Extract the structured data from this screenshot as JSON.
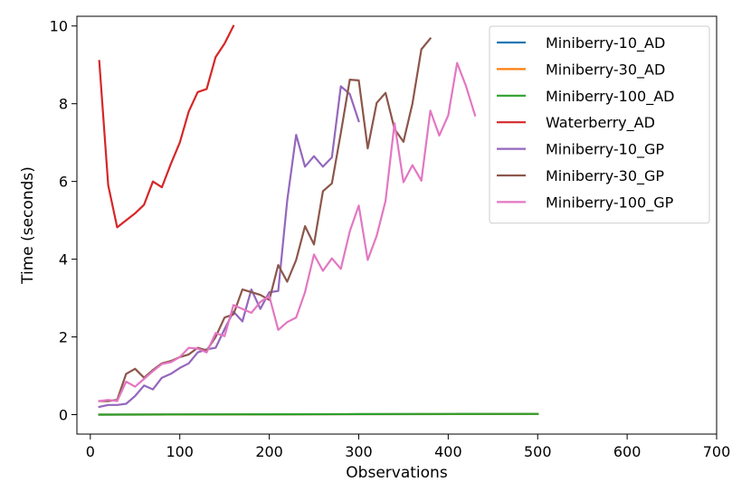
{
  "chart_data": {
    "type": "line",
    "title": "",
    "xlabel": "Observations",
    "ylabel": "Time (seconds)",
    "xlim": [
      -15,
      700
    ],
    "ylim": [
      -0.5,
      10.25
    ],
    "xticks": [
      "0",
      "100",
      "200",
      "300",
      "400",
      "500",
      "600",
      "700"
    ],
    "yticks": [
      "0",
      "2",
      "4",
      "6",
      "8",
      "10"
    ],
    "grid": false,
    "legend_position": "top-right",
    "series": [
      {
        "name": "Miniberry-10_AD",
        "color": "#1f77b4",
        "x": [
          10,
          500
        ],
        "y": [
          0.0,
          0.02
        ]
      },
      {
        "name": "Miniberry-30_AD",
        "color": "#ff7f0e",
        "x": [
          10,
          500
        ],
        "y": [
          0.0,
          0.02
        ]
      },
      {
        "name": "Miniberry-100_AD",
        "color": "#2ca02c",
        "x": [
          10,
          100,
          200,
          300,
          400,
          500
        ],
        "y": [
          0.0,
          0.005,
          0.01,
          0.014,
          0.017,
          0.02
        ]
      },
      {
        "name": "Waterberry_AD",
        "color": "#d62728",
        "x": [
          10,
          20,
          30,
          40,
          50,
          60,
          70,
          80,
          90,
          100,
          110,
          120,
          130,
          140,
          150,
          160
        ],
        "y": [
          9.1,
          5.9,
          4.82,
          5.0,
          5.18,
          5.4,
          6.0,
          5.85,
          6.45,
          7.0,
          7.8,
          8.3,
          8.38,
          9.2,
          9.55,
          10.0
        ]
      },
      {
        "name": "Miniberry-10_GP",
        "color": "#9467bd",
        "x": [
          10,
          20,
          30,
          40,
          50,
          60,
          70,
          80,
          90,
          100,
          110,
          120,
          130,
          140,
          150,
          160,
          170,
          180,
          190,
          200,
          210,
          220,
          230,
          240,
          250,
          260,
          270,
          280,
          290,
          300
        ],
        "y": [
          0.2,
          0.25,
          0.25,
          0.28,
          0.48,
          0.75,
          0.65,
          0.95,
          1.05,
          1.2,
          1.32,
          1.6,
          1.68,
          1.72,
          2.2,
          2.65,
          2.4,
          3.22,
          2.72,
          3.15,
          3.18,
          5.5,
          7.2,
          6.38,
          6.65,
          6.38,
          6.62,
          8.45,
          8.25,
          7.55
        ]
      },
      {
        "name": "Miniberry-30_GP",
        "color": "#8c564b",
        "x": [
          10,
          20,
          30,
          40,
          50,
          60,
          70,
          80,
          90,
          100,
          110,
          120,
          130,
          140,
          150,
          160,
          170,
          180,
          190,
          200,
          210,
          220,
          230,
          240,
          250,
          260,
          270,
          280,
          290,
          300,
          310,
          320,
          330,
          340,
          350,
          360,
          370,
          380
        ],
        "y": [
          0.35,
          0.35,
          0.38,
          1.05,
          1.18,
          0.95,
          1.15,
          1.32,
          1.38,
          1.48,
          1.55,
          1.72,
          1.65,
          2.0,
          2.5,
          2.58,
          3.22,
          3.15,
          3.08,
          2.95,
          3.85,
          3.42,
          3.98,
          4.85,
          4.38,
          5.75,
          5.95,
          7.25,
          8.62,
          8.6,
          6.85,
          8.02,
          8.28,
          7.35,
          7.02,
          8.0,
          9.4,
          9.68
        ]
      },
      {
        "name": "Miniberry-100_GP",
        "color": "#e377c2",
        "x": [
          10,
          20,
          30,
          40,
          50,
          60,
          70,
          80,
          90,
          100,
          110,
          120,
          130,
          140,
          150,
          160,
          170,
          180,
          190,
          200,
          210,
          220,
          230,
          240,
          250,
          260,
          270,
          280,
          290,
          300,
          310,
          320,
          330,
          340,
          350,
          360,
          370,
          380,
          390,
          400,
          410,
          420,
          430
        ],
        "y": [
          0.35,
          0.38,
          0.35,
          0.85,
          0.72,
          0.92,
          1.12,
          1.3,
          1.35,
          1.48,
          1.72,
          1.7,
          1.6,
          2.1,
          2.02,
          2.82,
          2.72,
          2.62,
          2.9,
          3.05,
          2.18,
          2.38,
          2.5,
          3.15,
          4.12,
          3.7,
          4.02,
          3.75,
          4.72,
          5.38,
          3.98,
          4.6,
          5.5,
          7.5,
          5.98,
          6.42,
          6.02,
          7.82,
          7.18,
          7.7,
          9.05,
          8.45,
          7.7
        ]
      }
    ]
  }
}
